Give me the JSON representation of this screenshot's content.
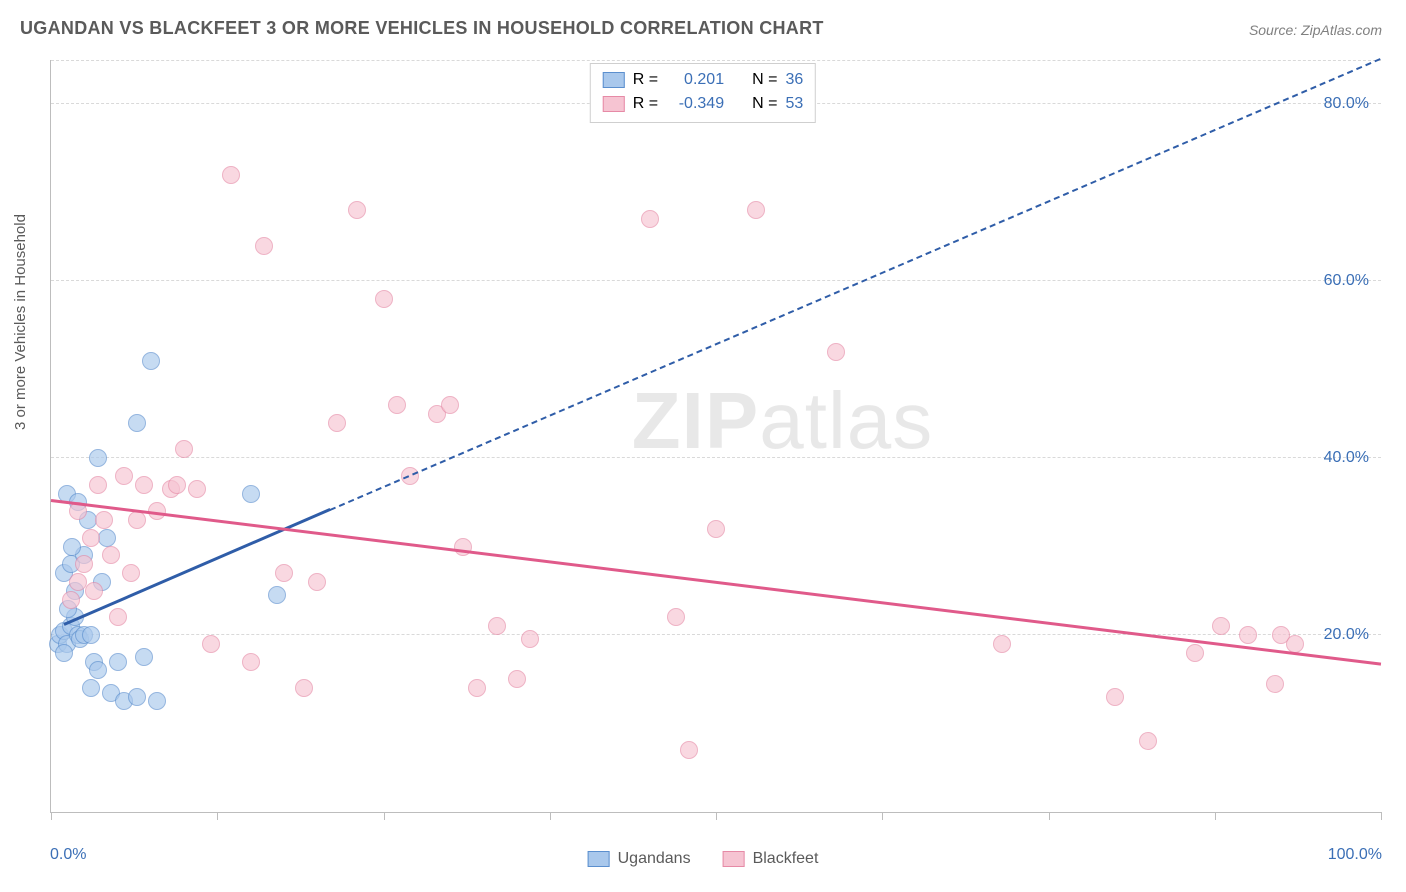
{
  "title": "UGANDAN VS BLACKFEET 3 OR MORE VEHICLES IN HOUSEHOLD CORRELATION CHART",
  "source": "Source: ZipAtlas.com",
  "ylabel": "3 or more Vehicles in Household",
  "watermark_bold": "ZIP",
  "watermark_rest": "atlas",
  "chart": {
    "type": "scatter",
    "background_color": "#ffffff",
    "grid_color": "#d9d9d9",
    "axis_color": "#bdbdbd",
    "label_color": "#5a5a5a",
    "value_color": "#3b6fb6",
    "title_fontsize": 18,
    "label_fontsize": 15,
    "tick_fontsize": 16,
    "xlim": [
      0,
      100
    ],
    "ylim": [
      0,
      85
    ],
    "ygrid_values": [
      20,
      40,
      60,
      80
    ],
    "ygrid_labels": [
      "20.0%",
      "40.0%",
      "60.0%",
      "80.0%"
    ],
    "xtick_values": [
      0,
      12.5,
      25,
      37.5,
      50,
      62.5,
      75,
      87.5,
      100
    ],
    "xaxis_min_label": "0.0%",
    "xaxis_max_label": "100.0%",
    "marker_radius": 9,
    "marker_stroke": 1.5,
    "series": [
      {
        "name": "Ugandans",
        "fill": "#a9c8ec",
        "stroke": "#5b8fce",
        "fill_opacity": 0.65,
        "R": "0.201",
        "N": "36",
        "trend": {
          "x1": 1,
          "y1": 21,
          "x2": 21,
          "y2": 34,
          "color": "#2f5da8",
          "width": 3,
          "dash": false
        },
        "trend_ext": {
          "x1": 21,
          "y1": 34,
          "x2": 100,
          "y2": 85,
          "color": "#2f5da8",
          "width": 2,
          "dash": true
        },
        "points": [
          [
            0.5,
            19
          ],
          [
            0.7,
            20
          ],
          [
            1.0,
            20.5
          ],
          [
            1.2,
            19
          ],
          [
            1.0,
            18
          ],
          [
            1.5,
            21
          ],
          [
            1.8,
            22
          ],
          [
            2.0,
            20
          ],
          [
            1.2,
            36
          ],
          [
            1.0,
            27
          ],
          [
            1.5,
            28
          ],
          [
            2.2,
            19.5
          ],
          [
            2.5,
            20
          ],
          [
            1.3,
            23
          ],
          [
            1.8,
            25
          ],
          [
            2.0,
            35
          ],
          [
            2.5,
            29
          ],
          [
            3.0,
            20
          ],
          [
            3.2,
            17
          ],
          [
            3.5,
            16
          ],
          [
            3.0,
            14
          ],
          [
            4.5,
            13.5
          ],
          [
            5.0,
            17
          ],
          [
            5.5,
            12.5
          ],
          [
            6.5,
            13
          ],
          [
            7.0,
            17.5
          ],
          [
            8.0,
            12.5
          ],
          [
            15.0,
            36
          ],
          [
            17.0,
            24.5
          ],
          [
            3.5,
            40
          ],
          [
            6.5,
            44
          ],
          [
            3.8,
            26
          ],
          [
            4.2,
            31
          ],
          [
            7.5,
            51
          ],
          [
            2.8,
            33
          ],
          [
            1.6,
            30
          ]
        ]
      },
      {
        "name": "Blackfeet",
        "fill": "#f6c4d2",
        "stroke": "#e68aa6",
        "fill_opacity": 0.65,
        "R": "-0.349",
        "N": "53",
        "trend": {
          "x1": 0,
          "y1": 35,
          "x2": 100,
          "y2": 16.5,
          "color": "#e05a8a",
          "width": 3,
          "dash": false
        },
        "points": [
          [
            1.5,
            24
          ],
          [
            2.0,
            26
          ],
          [
            2.5,
            28
          ],
          [
            2.0,
            34
          ],
          [
            3.0,
            31
          ],
          [
            3.5,
            37
          ],
          [
            4.0,
            33
          ],
          [
            3.2,
            25
          ],
          [
            4.5,
            29
          ],
          [
            5.0,
            22
          ],
          [
            6.0,
            27
          ],
          [
            6.5,
            33
          ],
          [
            7.0,
            37
          ],
          [
            8.0,
            34
          ],
          [
            9.0,
            36.5
          ],
          [
            9.5,
            37
          ],
          [
            10.0,
            41
          ],
          [
            11.0,
            36.5
          ],
          [
            12.0,
            19
          ],
          [
            13.5,
            72
          ],
          [
            15.0,
            17
          ],
          [
            16.0,
            64
          ],
          [
            17.5,
            27
          ],
          [
            19.0,
            14
          ],
          [
            20.0,
            26
          ],
          [
            21.5,
            44
          ],
          [
            23.0,
            68
          ],
          [
            25.0,
            58
          ],
          [
            26.0,
            46
          ],
          [
            27.0,
            38
          ],
          [
            29.0,
            45
          ],
          [
            30.0,
            46
          ],
          [
            31.0,
            30
          ],
          [
            32.0,
            14
          ],
          [
            33.5,
            21
          ],
          [
            35.0,
            15
          ],
          [
            36.0,
            19.5
          ],
          [
            45.0,
            67
          ],
          [
            47.0,
            22
          ],
          [
            48.0,
            7
          ],
          [
            50.0,
            32
          ],
          [
            53.0,
            68
          ],
          [
            59.0,
            52
          ],
          [
            71.5,
            19
          ],
          [
            80.0,
            13
          ],
          [
            82.5,
            8
          ],
          [
            86.0,
            18
          ],
          [
            88.0,
            21
          ],
          [
            90.0,
            20
          ],
          [
            92.0,
            14.5
          ],
          [
            92.5,
            20
          ],
          [
            93.5,
            19
          ],
          [
            5.5,
            38
          ]
        ]
      }
    ]
  },
  "legend_top": {
    "r_label": "R =",
    "n_label": "N ="
  },
  "legend_bottom": {
    "items": [
      "Ugandans",
      "Blackfeet"
    ]
  }
}
